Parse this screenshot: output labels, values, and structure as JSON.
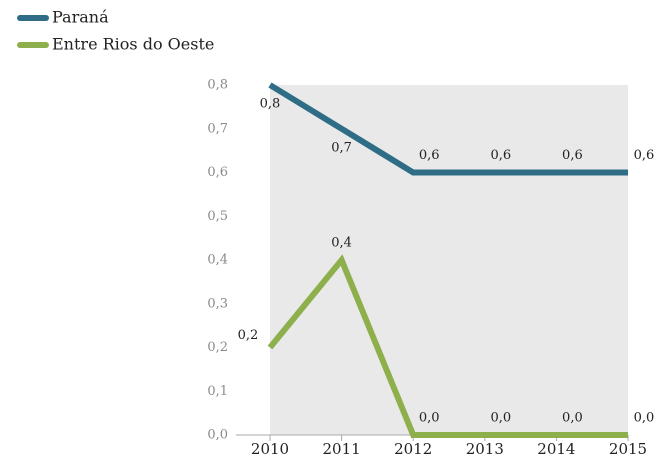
{
  "chart_data": {
    "type": "line",
    "categories": [
      "2010",
      "2011",
      "2012",
      "2013",
      "2014",
      "2015"
    ],
    "series": [
      {
        "name": "Paraná",
        "color": "#2f6d86",
        "values": [
          0.8,
          0.7,
          0.6,
          0.6,
          0.6,
          0.6
        ],
        "value_labels": [
          "0,8",
          "0,7",
          "0,6",
          "0,6",
          "0,6",
          "0,6"
        ]
      },
      {
        "name": "Entre Rios do Oeste",
        "color": "#8db04c",
        "values": [
          0.2,
          0.4,
          0,
          0,
          0,
          0
        ],
        "value_labels": [
          "0,2",
          "0,4",
          "0,0",
          "0,0",
          "0,0",
          "0,0"
        ]
      }
    ],
    "ylim": [
      0,
      0.8
    ],
    "yticks": [
      {
        "value": 0,
        "label": "0,0"
      },
      {
        "value": 0.1,
        "label": "0,1"
      },
      {
        "value": 0.2,
        "label": "0,2"
      },
      {
        "value": 0.3,
        "label": "0,3"
      },
      {
        "value": 0.4,
        "label": "0,4"
      },
      {
        "value": 0.5,
        "label": "0,5"
      },
      {
        "value": 0.6,
        "label": "0,6"
      },
      {
        "value": 0.7,
        "label": "0,7"
      },
      {
        "value": 0.8,
        "label": "0,8"
      }
    ],
    "legend": "top-left"
  }
}
